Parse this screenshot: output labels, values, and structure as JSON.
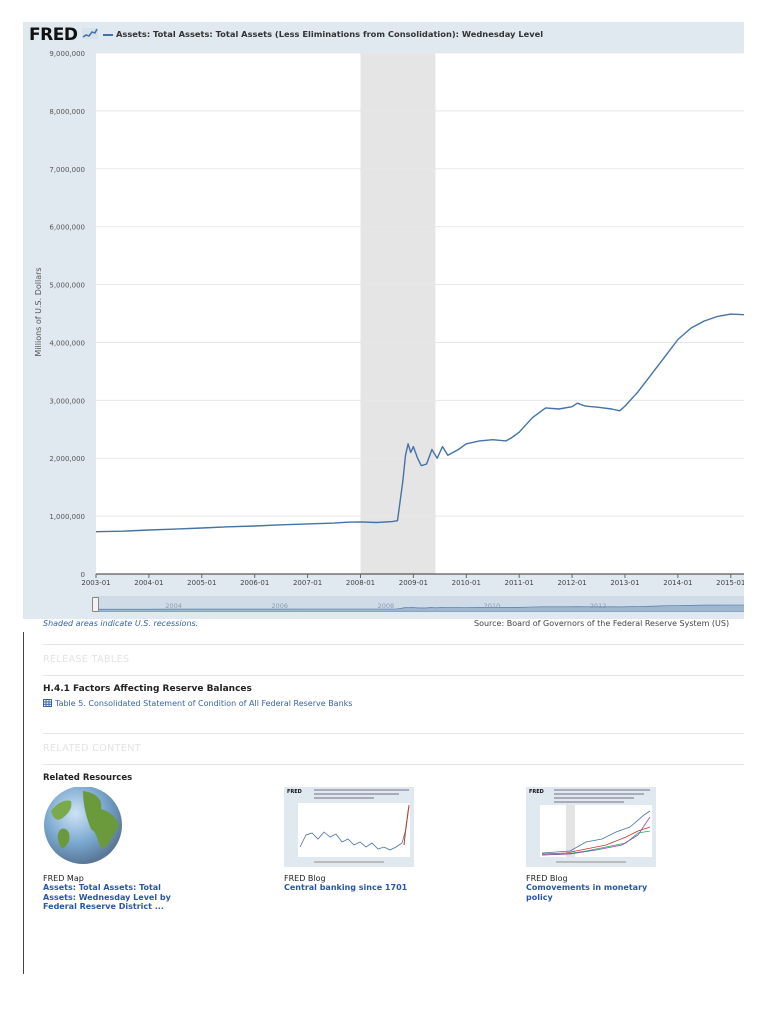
{
  "header": {
    "logo": "FRED",
    "title": "Assets: Total Assets: Total Assets (Less Eliminations from Consolidation): Wednesday Level"
  },
  "chart_data": {
    "type": "line",
    "title": "Assets: Total Assets: Total Assets (Less Eliminations from Consolidation): Wednesday Level",
    "xlabel": "",
    "ylabel": "Millions of U.S. Dollars",
    "ylim": [
      0,
      9000000
    ],
    "xlim": [
      "2003-01",
      "2015-04"
    ],
    "y_ticks": [
      "0",
      "1,000,000",
      "2,000,000",
      "3,000,000",
      "4,000,000",
      "5,000,000",
      "6,000,000",
      "7,000,000",
      "8,000,000",
      "9,000,000"
    ],
    "x_ticks": [
      "2003-01",
      "2004-01",
      "2005-01",
      "2006-01",
      "2007-01",
      "2008-01",
      "2009-01",
      "2010-01",
      "2011-01",
      "2012-01",
      "2013-01",
      "2014-01",
      "2015-01"
    ],
    "recession": [
      "2008-01",
      "2009-06"
    ],
    "series": [
      {
        "name": "Assets: Total Assets: Total Assets (Less Eliminations from Consolidation): Wednesday Level",
        "color": "#4572a7",
        "x": [
          2003.0,
          2003.5,
          2004.0,
          2004.5,
          2005.0,
          2005.5,
          2006.0,
          2006.5,
          2007.0,
          2007.5,
          2007.75,
          2008.0,
          2008.3,
          2008.6,
          2008.7,
          2008.8,
          2008.85,
          2008.9,
          2008.95,
          2009.0,
          2009.08,
          2009.15,
          2009.25,
          2009.35,
          2009.45,
          2009.55,
          2009.65,
          2009.75,
          2009.85,
          2010.0,
          2010.25,
          2010.5,
          2010.75,
          2010.85,
          2011.0,
          2011.25,
          2011.5,
          2011.75,
          2012.0,
          2012.1,
          2012.25,
          2012.5,
          2012.75,
          2012.9,
          2013.0,
          2013.25,
          2013.5,
          2013.75,
          2014.0,
          2014.25,
          2014.5,
          2014.75,
          2015.0,
          2015.25,
          2015.4
        ],
        "values": [
          730000,
          740000,
          760000,
          775000,
          795000,
          815000,
          830000,
          850000,
          865000,
          880000,
          895000,
          900000,
          890000,
          905000,
          920000,
          1600000,
          2050000,
          2250000,
          2100000,
          2200000,
          2000000,
          1870000,
          1900000,
          2150000,
          2000000,
          2200000,
          2050000,
          2100000,
          2150000,
          2250000,
          2300000,
          2320000,
          2300000,
          2350000,
          2450000,
          2700000,
          2870000,
          2850000,
          2890000,
          2950000,
          2900000,
          2880000,
          2850000,
          2820000,
          2900000,
          3150000,
          3450000,
          3750000,
          4050000,
          4250000,
          4370000,
          4450000,
          4490000,
          4480000,
          4470000
        ]
      }
    ]
  },
  "navigator": {
    "labels": [
      "2004",
      "2006",
      "2008",
      "2010",
      "2012"
    ]
  },
  "footer": {
    "recession_note": "Shaded areas indicate U.S. recessions.",
    "source": "Source: Board of Governors of the Federal Reserve System (US)"
  },
  "release_tables": {
    "heading": "RELEASE TABLES",
    "title": "H.4.1 Factors Affecting Reserve Balances",
    "link": "Table 5. Consolidated Statement of Condition of All Federal Reserve Banks"
  },
  "related": {
    "heading": "RELATED CONTENT",
    "title": "Related Resources",
    "items": [
      {
        "type": "FRED Map",
        "title": "Assets: Total Assets: Total Assets: Wednesday Level by Federal Reserve District ..."
      },
      {
        "type": "FRED Blog",
        "title": "Central banking since 1701"
      },
      {
        "type": "FRED Blog",
        "title": "Comovements in monetary policy"
      }
    ]
  }
}
